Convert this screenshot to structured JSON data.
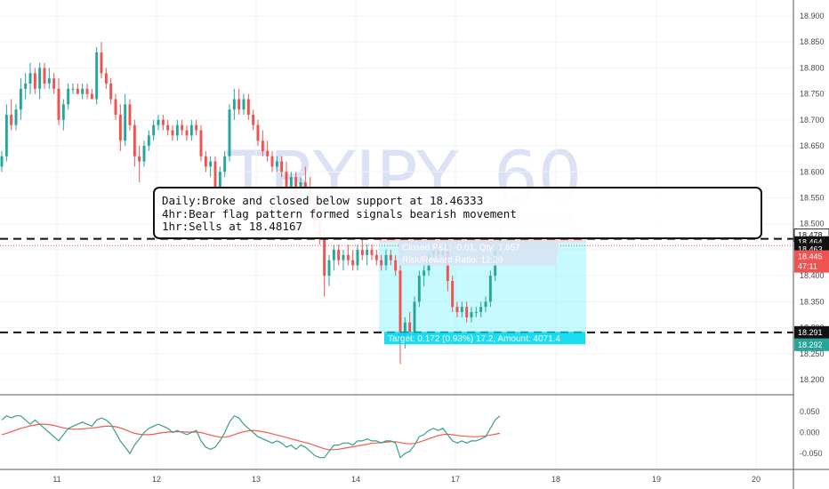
{
  "chart_data": {
    "type": "candlestick",
    "symbol": "TRYJPY",
    "interval": "60",
    "y_ticks": [
      "18.900",
      "18.850",
      "18.800",
      "18.750",
      "18.700",
      "18.650",
      "18.600",
      "18.550",
      "18.500",
      "18.450",
      "18.400",
      "18.350",
      "18.300",
      "18.250",
      "18.200"
    ],
    "x_ticks": [
      "11",
      "12",
      "13",
      "14",
      "17",
      "18",
      "19",
      "20"
    ],
    "ylim": [
      18.175,
      18.92
    ],
    "candles_ohlc": [
      [
        18.61,
        18.64,
        18.6,
        18.63
      ],
      [
        18.63,
        18.73,
        18.62,
        18.71
      ],
      [
        18.71,
        18.74,
        18.68,
        18.69
      ],
      [
        18.69,
        18.73,
        18.68,
        18.72
      ],
      [
        18.72,
        18.78,
        18.7,
        18.76
      ],
      [
        18.76,
        18.79,
        18.74,
        18.77
      ],
      [
        18.77,
        18.81,
        18.75,
        18.79
      ],
      [
        18.79,
        18.8,
        18.75,
        18.76
      ],
      [
        18.76,
        18.81,
        18.74,
        18.8
      ],
      [
        18.8,
        18.81,
        18.76,
        18.77
      ],
      [
        18.77,
        18.8,
        18.76,
        18.78
      ],
      [
        18.78,
        18.79,
        18.75,
        18.76
      ],
      [
        18.76,
        18.78,
        18.69,
        18.7
      ],
      [
        18.7,
        18.74,
        18.68,
        18.73
      ],
      [
        18.73,
        18.77,
        18.72,
        18.76
      ],
      [
        18.76,
        18.77,
        18.75,
        18.76
      ],
      [
        18.76,
        18.77,
        18.75,
        18.75
      ],
      [
        18.75,
        18.77,
        18.74,
        18.76
      ],
      [
        18.76,
        18.77,
        18.74,
        18.75
      ],
      [
        18.75,
        18.76,
        18.74,
        18.74
      ],
      [
        18.74,
        18.84,
        18.73,
        18.83
      ],
      [
        18.83,
        18.85,
        18.78,
        18.79
      ],
      [
        18.79,
        18.8,
        18.76,
        18.77
      ],
      [
        18.77,
        18.78,
        18.73,
        18.74
      ],
      [
        18.74,
        18.75,
        18.7,
        18.71
      ],
      [
        18.71,
        18.73,
        18.64,
        18.66
      ],
      [
        18.66,
        18.75,
        18.65,
        18.73
      ],
      [
        18.73,
        18.74,
        18.68,
        18.69
      ],
      [
        18.69,
        18.7,
        18.61,
        18.63
      ],
      [
        18.63,
        18.65,
        18.58,
        18.62
      ],
      [
        18.62,
        18.66,
        18.61,
        18.65
      ],
      [
        18.65,
        18.68,
        18.64,
        18.67
      ],
      [
        18.67,
        18.7,
        18.66,
        18.69
      ],
      [
        18.69,
        18.71,
        18.68,
        18.7
      ],
      [
        18.7,
        18.71,
        18.68,
        18.69
      ],
      [
        18.69,
        18.7,
        18.67,
        18.68
      ],
      [
        18.68,
        18.69,
        18.66,
        18.67
      ],
      [
        18.67,
        18.7,
        18.66,
        18.69
      ],
      [
        18.69,
        18.7,
        18.67,
        18.68
      ],
      [
        18.68,
        18.69,
        18.66,
        18.67
      ],
      [
        18.67,
        18.7,
        18.66,
        18.69
      ],
      [
        18.69,
        18.7,
        18.67,
        18.68
      ],
      [
        18.68,
        18.69,
        18.62,
        18.63
      ],
      [
        18.63,
        18.64,
        18.6,
        18.61
      ],
      [
        18.61,
        18.63,
        18.59,
        18.62
      ],
      [
        18.62,
        18.63,
        18.56,
        18.57
      ],
      [
        18.57,
        18.61,
        18.56,
        18.6
      ],
      [
        18.6,
        18.64,
        18.59,
        18.63
      ],
      [
        18.63,
        18.73,
        18.62,
        18.72
      ],
      [
        18.72,
        18.76,
        18.7,
        18.74
      ],
      [
        18.74,
        18.76,
        18.71,
        18.72
      ],
      [
        18.72,
        18.75,
        18.71,
        18.74
      ],
      [
        18.74,
        18.75,
        18.7,
        18.71
      ],
      [
        18.71,
        18.72,
        18.68,
        18.69
      ],
      [
        18.69,
        18.7,
        18.65,
        18.66
      ],
      [
        18.66,
        18.68,
        18.63,
        18.64
      ],
      [
        18.64,
        18.66,
        18.62,
        18.63
      ],
      [
        18.63,
        18.64,
        18.6,
        18.61
      ],
      [
        18.61,
        18.63,
        18.6,
        18.62
      ],
      [
        18.62,
        18.63,
        18.59,
        18.6
      ],
      [
        18.6,
        18.62,
        18.56,
        18.57
      ],
      [
        18.57,
        18.6,
        18.55,
        18.59
      ],
      [
        18.59,
        18.6,
        18.53,
        18.55
      ],
      [
        18.55,
        18.59,
        18.54,
        18.58
      ],
      [
        18.58,
        18.61,
        18.56,
        18.57
      ],
      [
        18.57,
        18.59,
        18.53,
        18.54
      ],
      [
        18.54,
        18.55,
        18.48,
        18.5
      ],
      [
        18.5,
        18.51,
        18.46,
        18.47
      ],
      [
        18.47,
        18.49,
        18.36,
        18.4
      ],
      [
        18.4,
        18.44,
        18.38,
        18.43
      ],
      [
        18.43,
        18.46,
        18.41,
        18.45
      ],
      [
        18.45,
        18.46,
        18.42,
        18.43
      ],
      [
        18.43,
        18.45,
        18.41,
        18.44
      ],
      [
        18.44,
        18.46,
        18.42,
        18.43
      ],
      [
        18.43,
        18.45,
        18.41,
        18.42
      ],
      [
        18.42,
        18.46,
        18.41,
        18.45
      ],
      [
        18.45,
        18.47,
        18.43,
        18.44
      ],
      [
        18.44,
        18.46,
        18.42,
        18.45
      ],
      [
        18.45,
        18.46,
        18.43,
        18.44
      ],
      [
        18.44,
        18.45,
        18.42,
        18.43
      ],
      [
        18.43,
        18.44,
        18.41,
        18.42
      ],
      [
        18.42,
        18.45,
        18.41,
        18.44
      ],
      [
        18.44,
        18.45,
        18.42,
        18.43
      ],
      [
        18.43,
        18.44,
        18.4,
        18.41
      ],
      [
        18.41,
        18.42,
        18.23,
        18.27
      ],
      [
        18.27,
        18.32,
        18.26,
        18.31
      ],
      [
        18.31,
        18.33,
        18.28,
        18.29
      ],
      [
        18.29,
        18.36,
        18.28,
        18.35
      ],
      [
        18.35,
        18.41,
        18.34,
        18.4
      ],
      [
        18.4,
        18.42,
        18.38,
        18.41
      ],
      [
        18.41,
        18.45,
        18.4,
        18.44
      ],
      [
        18.44,
        18.46,
        18.43,
        18.45
      ],
      [
        18.45,
        18.46,
        18.43,
        18.44
      ],
      [
        18.44,
        18.46,
        18.43,
        18.45
      ],
      [
        18.45,
        18.46,
        18.37,
        18.39
      ],
      [
        18.39,
        18.4,
        18.33,
        18.34
      ],
      [
        18.34,
        18.35,
        18.32,
        18.33
      ],
      [
        18.33,
        18.35,
        18.32,
        18.34
      ],
      [
        18.34,
        18.35,
        18.31,
        18.32
      ],
      [
        18.32,
        18.34,
        18.31,
        18.33
      ],
      [
        18.33,
        18.34,
        18.32,
        18.33
      ],
      [
        18.33,
        18.35,
        18.32,
        18.34
      ],
      [
        18.34,
        18.36,
        18.33,
        18.35
      ],
      [
        18.35,
        18.41,
        18.34,
        18.4
      ],
      [
        18.4,
        18.46,
        18.39,
        18.45
      ],
      [
        18.45,
        18.5,
        18.44,
        18.46
      ]
    ],
    "lines": {
      "resistance": 18.471,
      "support": 18.291,
      "current": 18.458
    },
    "price_badges": [
      {
        "text": "18.478",
        "color": "#ffffff",
        "text_color": "#222222",
        "price": 18.478
      },
      {
        "text": "18.464",
        "color": "#111111",
        "text_color": "#ffffff",
        "price": 18.464
      },
      {
        "text": "18.463",
        "color": "#111111",
        "text_color": "#ffffff",
        "price": 18.451
      },
      {
        "text": "18.445",
        "color": "#ef5350",
        "text_color": "#ffffff",
        "price": 18.437
      },
      {
        "text": "47:11",
        "color": "#ef5350",
        "text_color": "#ffffff",
        "price": 18.418
      },
      {
        "text": "18.291",
        "color": "#111111",
        "text_color": "#ffffff",
        "price": 18.291
      },
      {
        "text": "18.292",
        "color": "#26a69a",
        "text_color": "#ffffff",
        "price": 18.267
      }
    ],
    "position": {
      "entry": 18.464,
      "stop": 18.478,
      "target": 18.292,
      "stop_label": "Stop: 0.014 (0.08%) 1.4, Amount: 750",
      "open_label": "Closed P&L: -0.01, Qty: 1,657",
      "risk_label": "Risk/Reward Ratio: 12.29",
      "target_label": "Target: 0.172 (0.93%) 17.2, Amount: 4071.4"
    },
    "annotation": {
      "lines": [
        "Daily:Broke and closed below support at 18.46333",
        "4hr:Bear flag pattern formed signals bearish movement",
        "1hr:Sells at 18.48167"
      ]
    },
    "oscillator": {
      "y_ticks": [
        "0.050",
        "0.000",
        "-0.050"
      ],
      "ylim": [
        -0.075,
        0.07
      ],
      "fast": [
        0.03,
        0.04,
        0.035,
        0.04,
        0.04,
        0.03,
        0.02,
        0.03,
        0.02,
        0.01,
        0.0,
        -0.01,
        -0.02,
        -0.005,
        0.01,
        0.015,
        0.02,
        0.025,
        0.02,
        0.015,
        0.03,
        0.035,
        0.03,
        0.02,
        0.0,
        -0.02,
        -0.035,
        -0.05,
        -0.03,
        -0.015,
        0.0,
        0.01,
        0.015,
        0.02,
        0.015,
        0.01,
        0.0,
        0.005,
        0.0,
        -0.005,
        0.0,
        0.005,
        -0.02,
        -0.035,
        -0.04,
        -0.035,
        -0.02,
        0.0,
        0.025,
        0.04,
        0.035,
        0.02,
        0.01,
        0.0,
        -0.01,
        -0.015,
        -0.02,
        -0.025,
        -0.02,
        -0.025,
        -0.035,
        -0.03,
        -0.04,
        -0.03,
        -0.035,
        -0.045,
        -0.055,
        -0.06,
        -0.06,
        -0.045,
        -0.03,
        -0.03,
        -0.025,
        -0.025,
        -0.03,
        -0.02,
        -0.02,
        -0.015,
        -0.02,
        -0.02,
        -0.025,
        -0.02,
        -0.02,
        -0.025,
        -0.06,
        -0.05,
        -0.045,
        -0.03,
        -0.01,
        -0.005,
        0.005,
        0.01,
        0.005,
        0.01,
        -0.005,
        -0.02,
        -0.025,
        -0.02,
        -0.025,
        -0.02,
        -0.02,
        -0.015,
        -0.01,
        0.01,
        0.03,
        0.04
      ],
      "slow": [
        -0.005,
        -0.002,
        0.002,
        0.006,
        0.01,
        0.013,
        0.016,
        0.018,
        0.02,
        0.02,
        0.019,
        0.017,
        0.014,
        0.011,
        0.009,
        0.008,
        0.008,
        0.009,
        0.01,
        0.011,
        0.012,
        0.014,
        0.015,
        0.015,
        0.014,
        0.011,
        0.007,
        0.002,
        -0.002,
        -0.004,
        -0.005,
        -0.005,
        -0.004,
        -0.002,
        0.0,
        0.001,
        0.002,
        0.002,
        0.002,
        0.001,
        0.001,
        0.001,
        0.0,
        -0.003,
        -0.006,
        -0.009,
        -0.011,
        -0.011,
        -0.009,
        -0.005,
        -0.001,
        0.002,
        0.004,
        0.005,
        0.004,
        0.002,
        0.0,
        -0.003,
        -0.006,
        -0.009,
        -0.012,
        -0.015,
        -0.018,
        -0.021,
        -0.024,
        -0.027,
        -0.031,
        -0.035,
        -0.039,
        -0.041,
        -0.041,
        -0.04,
        -0.038,
        -0.036,
        -0.034,
        -0.032,
        -0.03,
        -0.028,
        -0.026,
        -0.025,
        -0.024,
        -0.023,
        -0.022,
        -0.022,
        -0.024,
        -0.026,
        -0.027,
        -0.026,
        -0.023,
        -0.019,
        -0.015,
        -0.011,
        -0.007,
        -0.005,
        -0.004,
        -0.005,
        -0.007,
        -0.008,
        -0.009,
        -0.01,
        -0.01,
        -0.009,
        -0.008,
        -0.006,
        -0.004,
        -0.002
      ]
    },
    "colors": {
      "up": "#26a69a",
      "down": "#ef5350",
      "target_zone": "#80f3ff",
      "stop_zone": "#f6b8c0",
      "oscillator_fast": "#3a9e8f",
      "oscillator_slow": "#f25c4a"
    }
  }
}
